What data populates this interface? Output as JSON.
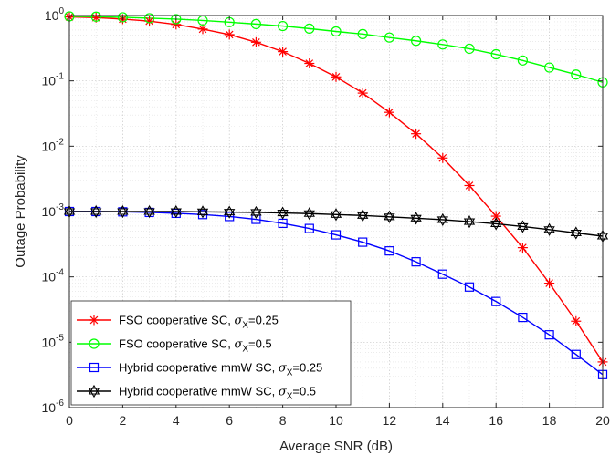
{
  "chart_data": {
    "type": "line",
    "xlabel": "Average SNR (dB)",
    "ylabel": "Outage Probability",
    "xlim": [
      0,
      20
    ],
    "ylim": [
      1e-06,
      1
    ],
    "yscale": "log",
    "grid": true,
    "legend_position": "bottom-left",
    "x_ticks": [
      0,
      2,
      4,
      6,
      8,
      10,
      12,
      14,
      16,
      18,
      20
    ],
    "y_ticks": [
      {
        "value": 1e-06,
        "base": "10",
        "exp": "-6"
      },
      {
        "value": 1e-05,
        "base": "10",
        "exp": "-5"
      },
      {
        "value": 0.0001,
        "base": "10",
        "exp": "-4"
      },
      {
        "value": 0.001,
        "base": "10",
        "exp": "-3"
      },
      {
        "value": 0.01,
        "base": "10",
        "exp": "-2"
      },
      {
        "value": 0.1,
        "base": "10",
        "exp": "-1"
      },
      {
        "value": 1,
        "base": "10",
        "exp": "0"
      }
    ],
    "x": [
      0,
      1,
      2,
      3,
      4,
      5,
      6,
      7,
      8,
      9,
      10,
      11,
      12,
      13,
      14,
      15,
      16,
      17,
      18,
      19,
      20
    ],
    "series": [
      {
        "name_prefix": "FSO cooperative SC, ",
        "sigma_value": "=0.25",
        "color": "#ff0000",
        "marker": "asterisk",
        "values": [
          0.95,
          0.93,
          0.88,
          0.82,
          0.73,
          0.62,
          0.51,
          0.39,
          0.28,
          0.185,
          0.115,
          0.065,
          0.033,
          0.0155,
          0.0066,
          0.0025,
          0.00085,
          0.00028,
          8e-05,
          2.1e-05,
          5e-06
        ]
      },
      {
        "name_prefix": "FSO cooperative SC, ",
        "sigma_value": "=0.5",
        "color": "#00ff00",
        "marker": "circle",
        "values": [
          0.97,
          0.96,
          0.94,
          0.91,
          0.88,
          0.84,
          0.79,
          0.74,
          0.69,
          0.63,
          0.57,
          0.52,
          0.46,
          0.41,
          0.36,
          0.31,
          0.255,
          0.205,
          0.16,
          0.125,
          0.095
        ]
      },
      {
        "name_prefix": "Hybrid cooperative mmW SC, ",
        "sigma_value": "=0.25",
        "color": "#0000ff",
        "marker": "square",
        "values": [
          0.001,
          0.001,
          0.00099,
          0.00097,
          0.00094,
          0.0009,
          0.00084,
          0.00076,
          0.00066,
          0.00055,
          0.00044,
          0.00034,
          0.00025,
          0.00017,
          0.00011,
          7e-05,
          4.2e-05,
          2.4e-05,
          1.3e-05,
          6.5e-06,
          3.2e-06
        ]
      },
      {
        "name_prefix": "Hybrid cooperative mmW SC, ",
        "sigma_value": "=0.5",
        "color": "#000000",
        "marker": "hexagram",
        "values": [
          0.001,
          0.001,
          0.001,
          0.001,
          0.001,
          0.00099,
          0.00098,
          0.00097,
          0.00095,
          0.00093,
          0.0009,
          0.00087,
          0.00083,
          0.00079,
          0.00075,
          0.0007,
          0.00065,
          0.00059,
          0.00053,
          0.00047,
          0.00042
        ]
      }
    ],
    "legend_sigma_symbol": "σ",
    "legend_sigma_subscript": "X"
  }
}
